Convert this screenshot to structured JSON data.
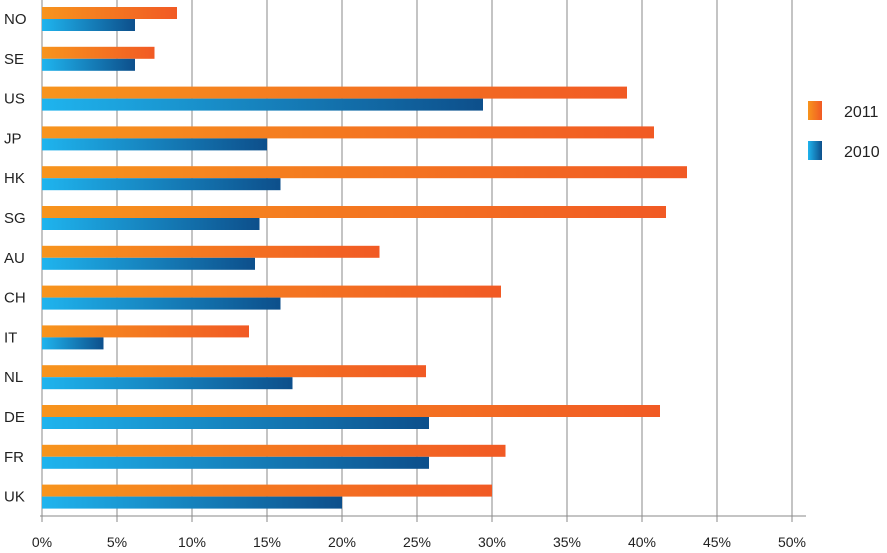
{
  "chart_data": {
    "type": "bar",
    "orientation": "horizontal",
    "title": "",
    "xlabel": "",
    "ylabel": "",
    "categories": [
      "NO",
      "SE",
      "US",
      "JP",
      "HK",
      "SG",
      "AU",
      "CH",
      "IT",
      "NL",
      "DE",
      "FR",
      "UK"
    ],
    "series": [
      {
        "name": "2011",
        "color": "#f26522",
        "values": [
          9.0,
          7.5,
          39.0,
          40.8,
          43.0,
          41.6,
          22.5,
          30.6,
          13.8,
          25.6,
          41.2,
          30.9,
          30.0
        ]
      },
      {
        "name": "2010",
        "color": "#0b5f9e",
        "values": [
          6.2,
          6.2,
          29.4,
          15.0,
          15.9,
          14.5,
          14.2,
          15.9,
          4.1,
          16.7,
          25.8,
          25.8,
          20.0
        ]
      }
    ],
    "xlim": [
      0,
      50
    ],
    "xticks": [
      "0%",
      "5%",
      "10%",
      "15%",
      "20%",
      "25%",
      "30%",
      "35%",
      "40%",
      "45%",
      "50%"
    ],
    "grid": "vertical",
    "legend_position": "right"
  }
}
